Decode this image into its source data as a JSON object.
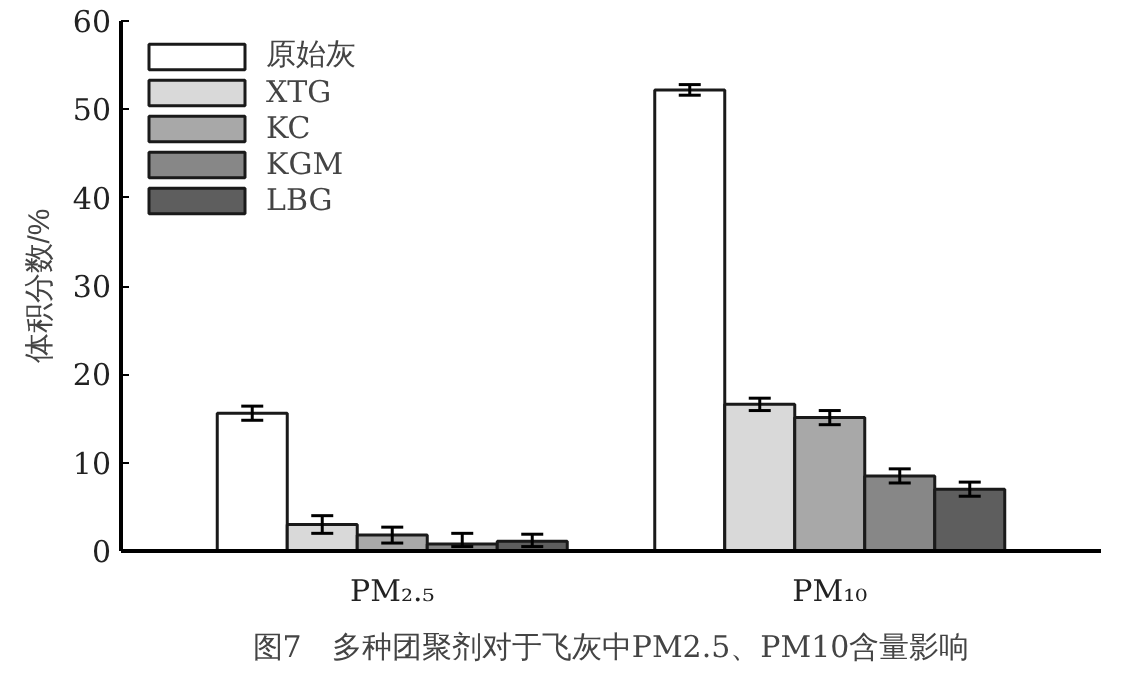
{
  "chart_data": {
    "type": "bar",
    "title": "图7　多种团聚剂对于飞灰中PM2.5、PM10含量影响",
    "ylabel": "体积分数/%",
    "categories": [
      "PM₂.₅",
      "PM₁₀"
    ],
    "series": [
      {
        "name": "原始灰",
        "color": "#ffffff",
        "values": [
          15.6,
          52.2
        ],
        "errors": [
          0.8,
          0.6
        ]
      },
      {
        "name": "XTG",
        "color": "#d9d9d9",
        "values": [
          3.0,
          16.6
        ],
        "errors": [
          1.0,
          0.7
        ]
      },
      {
        "name": "KC",
        "color": "#a8a8a8",
        "values": [
          1.8,
          15.1
        ],
        "errors": [
          0.9,
          0.8
        ]
      },
      {
        "name": "KGM",
        "color": "#878787",
        "values": [
          0.8,
          8.5
        ],
        "errors": [
          [
            0.5,
            2.0
          ],
          0.8
        ]
      },
      {
        "name": "LBG",
        "color": "#5e5e5e",
        "values": [
          1.1,
          7.0
        ],
        "errors": [
          [
            0.5,
            1.9
          ],
          0.8
        ]
      }
    ],
    "ylim": [
      0,
      60
    ],
    "yticks": [
      0,
      10,
      20,
      30,
      40,
      50,
      60
    ],
    "grid": false,
    "legend": "top left"
  }
}
